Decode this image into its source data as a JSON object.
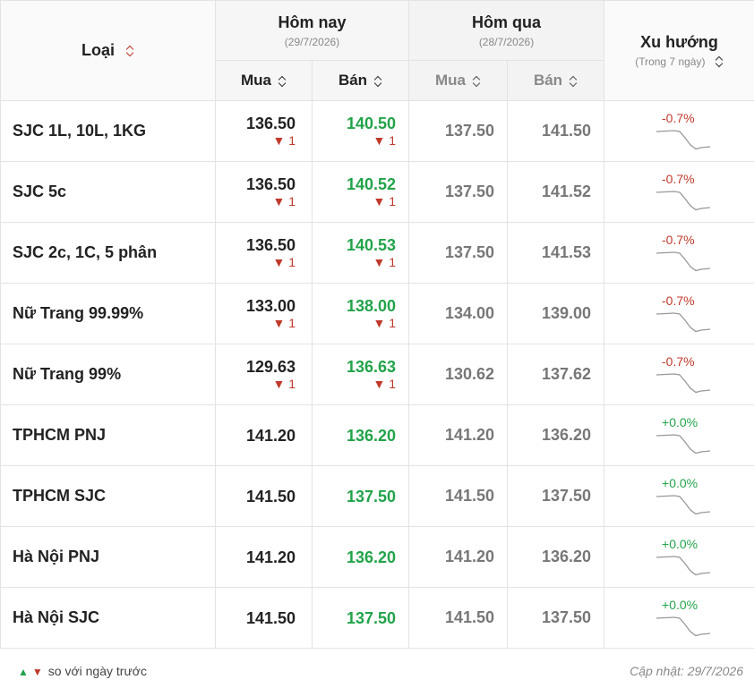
{
  "header": {
    "type_label": "Loại",
    "today_label": "Hôm nay",
    "today_date": "(29/7/2026)",
    "yesterday_label": "Hôm qua",
    "yesterday_date": "(28/7/2026)",
    "trend_label": "Xu hướng",
    "trend_sub": "(Trong 7 ngày)",
    "buy_label": "Mua",
    "sell_label": "Bán"
  },
  "rows": [
    {
      "name": "SJC 1L, 10L, 1KG",
      "buy": "136.50",
      "buy_change": "▼ 1",
      "sell": "140.50",
      "sell_change": "▼ 1",
      "y_buy": "137.50",
      "y_sell": "141.50",
      "trend": "-0.7%",
      "trend_dir": "neg"
    },
    {
      "name": "SJC 5c",
      "buy": "136.50",
      "buy_change": "▼ 1",
      "sell": "140.52",
      "sell_change": "▼ 1",
      "y_buy": "137.50",
      "y_sell": "141.52",
      "trend": "-0.7%",
      "trend_dir": "neg"
    },
    {
      "name": "SJC 2c, 1C, 5 phân",
      "buy": "136.50",
      "buy_change": "▼ 1",
      "sell": "140.53",
      "sell_change": "▼ 1",
      "y_buy": "137.50",
      "y_sell": "141.53",
      "trend": "-0.7%",
      "trend_dir": "neg"
    },
    {
      "name": "Nữ Trang 99.99%",
      "buy": "133.00",
      "buy_change": "▼ 1",
      "sell": "138.00",
      "sell_change": "▼ 1",
      "y_buy": "134.00",
      "y_sell": "139.00",
      "trend": "-0.7%",
      "trend_dir": "neg"
    },
    {
      "name": "Nữ Trang 99%",
      "buy": "129.63",
      "buy_change": "▼ 1",
      "sell": "136.63",
      "sell_change": "▼ 1",
      "y_buy": "130.62",
      "y_sell": "137.62",
      "trend": "-0.7%",
      "trend_dir": "neg"
    },
    {
      "name": "TPHCM PNJ",
      "buy": "141.20",
      "buy_change": "",
      "sell": "136.20",
      "sell_change": "",
      "y_buy": "141.20",
      "y_sell": "136.20",
      "trend": "+0.0%",
      "trend_dir": "pos"
    },
    {
      "name": "TPHCM SJC",
      "buy": "141.50",
      "buy_change": "",
      "sell": "137.50",
      "sell_change": "",
      "y_buy": "141.50",
      "y_sell": "137.50",
      "trend": "+0.0%",
      "trend_dir": "pos"
    },
    {
      "name": "Hà Nội PNJ",
      "buy": "141.20",
      "buy_change": "",
      "sell": "136.20",
      "sell_change": "",
      "y_buy": "141.20",
      "y_sell": "136.20",
      "trend": "+0.0%",
      "trend_dir": "pos"
    },
    {
      "name": "Hà Nội SJC",
      "buy": "141.50",
      "buy_change": "",
      "sell": "137.50",
      "sell_change": "",
      "y_buy": "141.50",
      "y_sell": "137.50",
      "trend": "+0.0%",
      "trend_dir": "pos"
    }
  ],
  "footer": {
    "legend_up": "▲",
    "legend_down": "▼",
    "legend_text": "so với ngày trước",
    "updated": "Cập nhật: 29/7/2026"
  },
  "colors": {
    "up": "#22a34a",
    "down": "#c0392b"
  },
  "icons": [
    "sort-icon",
    "sparkline-icon",
    "up-arrow-icon",
    "down-arrow-icon"
  ]
}
